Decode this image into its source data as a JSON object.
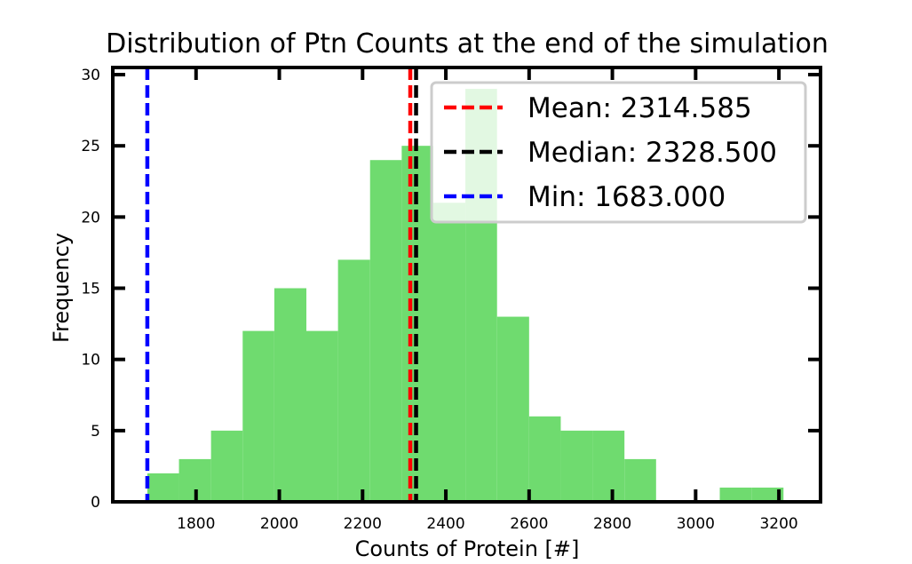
{
  "chart_data": {
    "type": "bar",
    "title": "Distribution of Ptn Counts at the end of the simulation",
    "xlabel": "Counts of Protein [#]",
    "ylabel": "Frequency",
    "xlim": [
      1600,
      3300
    ],
    "ylim": [
      0,
      30.5
    ],
    "xticks": [
      "1800",
      "2000",
      "2200",
      "2400",
      "2600",
      "2800",
      "3000",
      "3200"
    ],
    "yticks": [
      "0",
      "5",
      "10",
      "15",
      "20",
      "25",
      "30"
    ],
    "bar_color": "#6fdb6f",
    "bins": [
      {
        "x0": 1683,
        "x1": 1759,
        "count": 2
      },
      {
        "x0": 1759,
        "x1": 1836,
        "count": 3
      },
      {
        "x0": 1836,
        "x1": 1912,
        "count": 5
      },
      {
        "x0": 1912,
        "x1": 1988,
        "count": 12
      },
      {
        "x0": 1988,
        "x1": 2065,
        "count": 15
      },
      {
        "x0": 2065,
        "x1": 2141,
        "count": 12
      },
      {
        "x0": 2141,
        "x1": 2218,
        "count": 17
      },
      {
        "x0": 2218,
        "x1": 2294,
        "count": 24
      },
      {
        "x0": 2294,
        "x1": 2370,
        "count": 25
      },
      {
        "x0": 2370,
        "x1": 2447,
        "count": 21
      },
      {
        "x0": 2447,
        "x1": 2523,
        "count": 29
      },
      {
        "x0": 2523,
        "x1": 2600,
        "count": 13
      },
      {
        "x0": 2600,
        "x1": 2676,
        "count": 6
      },
      {
        "x0": 2676,
        "x1": 2752,
        "count": 5
      },
      {
        "x0": 2752,
        "x1": 2829,
        "count": 5
      },
      {
        "x0": 2829,
        "x1": 2905,
        "count": 3
      },
      {
        "x0": 2905,
        "x1": 2982,
        "count": 0
      },
      {
        "x0": 2982,
        "x1": 3058,
        "count": 0
      },
      {
        "x0": 3058,
        "x1": 3134,
        "count": 1
      },
      {
        "x0": 3134,
        "x1": 3211,
        "count": 1
      }
    ],
    "vlines": [
      {
        "name": "Mean",
        "value": 2314.585,
        "color": "#ff0000",
        "label": "Mean: 2314.585"
      },
      {
        "name": "Median",
        "value": 2328.5,
        "color": "#000000",
        "label": "Median: 2328.500"
      },
      {
        "name": "Min",
        "value": 1683.0,
        "color": "#0000ff",
        "label": "Min: 1683.000"
      }
    ],
    "legend_position": "top-right",
    "grid": false
  }
}
